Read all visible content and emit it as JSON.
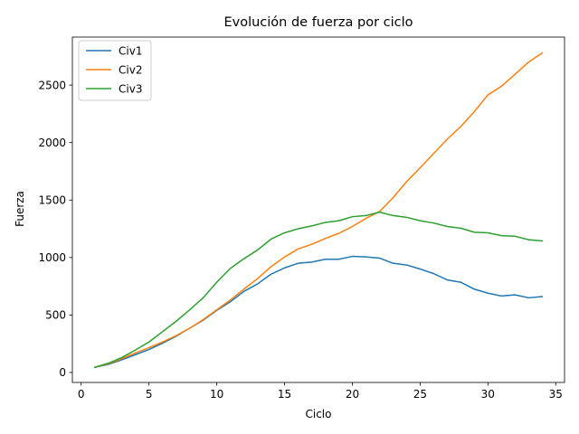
{
  "chart_data": {
    "type": "line",
    "title": "Evolución de fuerza por ciclo",
    "xlabel": "Ciclo",
    "ylabel": "Fuerza",
    "xlim": [
      -0.65,
      35.65
    ],
    "ylim": [
      -87,
      2918
    ],
    "xticks": [
      0,
      5,
      10,
      15,
      20,
      25,
      30,
      35
    ],
    "yticks": [
      0,
      500,
      1000,
      1500,
      2000,
      2500
    ],
    "grid": false,
    "legend_position": "top-left",
    "x": [
      1,
      2,
      3,
      4,
      5,
      6,
      7,
      8,
      9,
      10,
      11,
      12,
      13,
      14,
      15,
      16,
      17,
      18,
      19,
      20,
      21,
      22,
      23,
      24,
      25,
      26,
      27,
      28,
      29,
      30,
      31,
      32,
      33,
      34
    ],
    "series": [
      {
        "name": "Civ1",
        "color": "#1f77b4",
        "values": [
          45,
          70,
          110,
          155,
          200,
          255,
          315,
          385,
          455,
          540,
          615,
          705,
          770,
          855,
          910,
          950,
          960,
          985,
          985,
          1010,
          1005,
          995,
          950,
          935,
          900,
          860,
          805,
          785,
          725,
          690,
          665,
          675,
          650,
          660
        ]
      },
      {
        "name": "Civ2",
        "color": "#ff7f0e",
        "values": [
          45,
          75,
          120,
          170,
          215,
          265,
          320,
          385,
          460,
          545,
          630,
          725,
          815,
          920,
          1005,
          1075,
          1115,
          1165,
          1210,
          1270,
          1340,
          1400,
          1520,
          1660,
          1780,
          1905,
          2030,
          2140,
          2270,
          2415,
          2490,
          2595,
          2700,
          2780
        ]
      },
      {
        "name": "Civ3",
        "color": "#2ca02c",
        "values": [
          45,
          80,
          130,
          195,
          265,
          355,
          445,
          545,
          650,
          785,
          905,
          990,
          1065,
          1160,
          1215,
          1250,
          1275,
          1305,
          1320,
          1355,
          1365,
          1395,
          1365,
          1350,
          1320,
          1300,
          1270,
          1255,
          1220,
          1215,
          1190,
          1185,
          1155,
          1145
        ]
      }
    ]
  }
}
